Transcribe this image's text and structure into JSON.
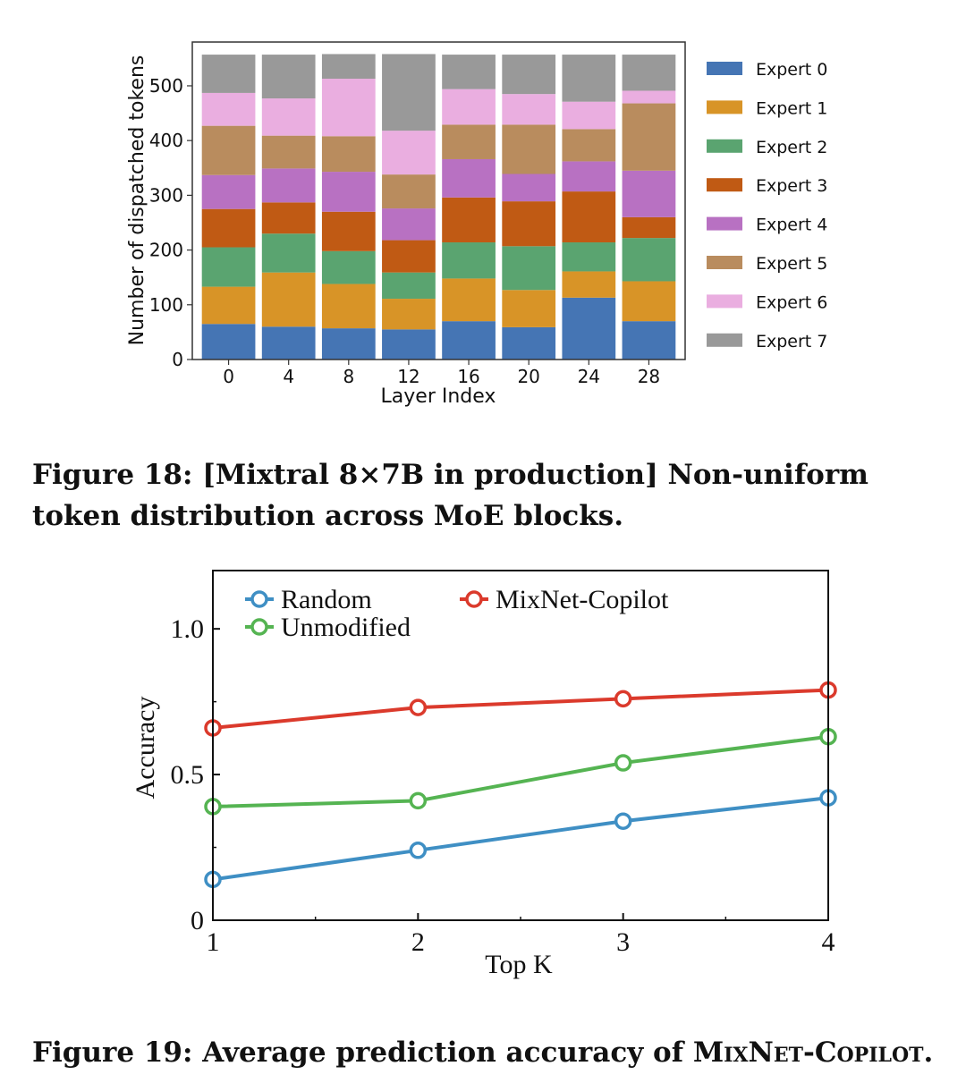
{
  "figures": [
    {
      "caption": "Figure 18: [Mixtral 8×7B in production] Non-uniform token distribution across MoE blocks.",
      "caption_label": "Figure 18:",
      "caption_text": "[Mixtral 8×7B in production] Non-uniform token distribution across MoE blocks."
    },
    {
      "caption": "Figure 19: Average prediction accuracy of MixNet-Copilot.",
      "caption_label": "Figure 19:",
      "caption_text_before": "Average prediction accuracy of ",
      "caption_smallcaps": "MixNet-Copilot",
      "caption_text_after": "."
    }
  ],
  "chart_data": [
    {
      "type": "bar",
      "stacked": true,
      "title": "",
      "xlabel": "Layer Index",
      "ylabel": "Number of dispatched tokens",
      "ylim": [
        0,
        580
      ],
      "yticks": [
        0,
        100,
        200,
        300,
        400,
        500
      ],
      "categories": [
        "0",
        "4",
        "8",
        "12",
        "16",
        "20",
        "24",
        "28"
      ],
      "legend_position": "right",
      "grid": false,
      "series": [
        {
          "name": "Expert 0",
          "color": "#4575b4",
          "values": [
            65,
            60,
            57,
            55,
            70,
            59,
            113,
            70
          ]
        },
        {
          "name": "Expert 1",
          "color": "#d89427",
          "values": [
            68,
            99,
            81,
            56,
            78,
            68,
            48,
            73
          ]
        },
        {
          "name": "Expert 2",
          "color": "#5aa470",
          "values": [
            72,
            71,
            60,
            48,
            66,
            80,
            53,
            79
          ]
        },
        {
          "name": "Expert 3",
          "color": "#c05a14",
          "values": [
            70,
            57,
            72,
            59,
            82,
            82,
            93,
            38
          ]
        },
        {
          "name": "Expert 4",
          "color": "#b871c2",
          "values": [
            62,
            62,
            73,
            58,
            70,
            50,
            55,
            85
          ]
        },
        {
          "name": "Expert 5",
          "color": "#b98c5e",
          "values": [
            90,
            60,
            65,
            62,
            63,
            90,
            59,
            123
          ]
        },
        {
          "name": "Expert 6",
          "color": "#eaaee0",
          "values": [
            60,
            68,
            105,
            80,
            65,
            56,
            50,
            23
          ]
        },
        {
          "name": "Expert 7",
          "color": "#999999",
          "values": [
            70,
            80,
            45,
            140,
            63,
            72,
            86,
            66
          ]
        }
      ]
    },
    {
      "type": "line",
      "title": "",
      "xlabel": "Top K",
      "ylabel": "Accuracy",
      "xlim": [
        1,
        4
      ],
      "ylim": [
        0,
        1.2
      ],
      "xticks": [
        "1",
        "2",
        "3",
        "4"
      ],
      "yticks": [
        "0",
        "0.5",
        "1.0"
      ],
      "x": [
        1,
        2,
        3,
        4
      ],
      "legend_position": "top-left",
      "grid": false,
      "series": [
        {
          "name": "Random",
          "color": "#3f8fc4",
          "values": [
            0.14,
            0.24,
            0.34,
            0.42
          ]
        },
        {
          "name": "Unmodified",
          "color": "#55b452",
          "values": [
            0.39,
            0.41,
            0.54,
            0.63
          ]
        },
        {
          "name": "MixNet-Copilot",
          "color": "#db3a2c",
          "values": [
            0.66,
            0.73,
            0.76,
            0.79
          ]
        }
      ]
    }
  ]
}
